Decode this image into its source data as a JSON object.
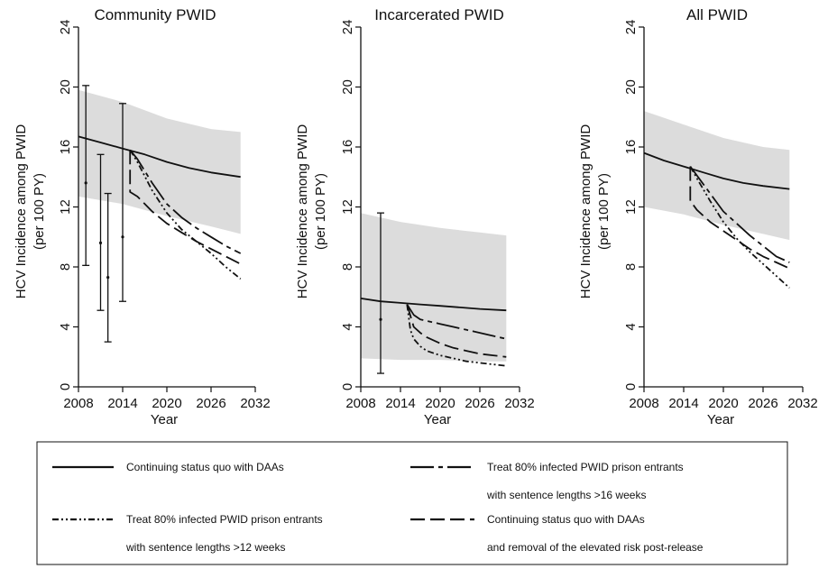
{
  "chart_data": [
    {
      "type": "line",
      "title": "Community PWID",
      "xlabel": "Year",
      "ylabel_line1": "HCV Incidence among PWID",
      "ylabel_line2": "(per 100 PY)",
      "xlim": [
        2008,
        2032
      ],
      "ylim": [
        0,
        24
      ],
      "xticks": [
        "2008",
        "2014",
        "2020",
        "2026",
        "2032"
      ],
      "yticks": [
        "0",
        "4",
        "8",
        "12",
        "16",
        "20",
        "24"
      ],
      "band": {
        "x": [
          2008,
          2014,
          2020,
          2026,
          2030
        ],
        "upper": [
          19.8,
          19.0,
          17.9,
          17.2,
          17.0
        ],
        "lower": [
          12.7,
          12.2,
          11.4,
          10.7,
          10.2
        ]
      },
      "series": [
        {
          "key": "status_quo",
          "x": [
            2008,
            2011,
            2014,
            2017,
            2020,
            2023,
            2026,
            2030
          ],
          "values": [
            16.7,
            16.3,
            15.9,
            15.5,
            15.0,
            14.6,
            14.3,
            14.0
          ]
        },
        {
          "key": "treat16",
          "x": [
            2015,
            2016,
            2018,
            2020,
            2022,
            2024,
            2026,
            2028,
            2030
          ],
          "values": [
            15.8,
            15.2,
            13.6,
            12.2,
            11.3,
            10.6,
            10.0,
            9.4,
            8.9
          ]
        },
        {
          "key": "treat12",
          "x": [
            2015,
            2016,
            2018,
            2020,
            2022,
            2024,
            2026,
            2028,
            2030
          ],
          "values": [
            15.8,
            15.0,
            13.1,
            11.6,
            10.5,
            9.7,
            8.9,
            8.0,
            7.2
          ]
        },
        {
          "key": "removal",
          "x": [
            2015,
            2015,
            2016,
            2018,
            2020,
            2022,
            2024,
            2026,
            2028,
            2030
          ],
          "values": [
            15.8,
            13.0,
            12.7,
            11.7,
            10.9,
            10.3,
            9.7,
            9.2,
            8.7,
            8.2
          ]
        }
      ],
      "errorbars": [
        {
          "x": 2009,
          "y": 13.6,
          "low": 8.1,
          "high": 20.1
        },
        {
          "x": 2011,
          "y": 9.6,
          "low": 5.1,
          "high": 15.5
        },
        {
          "x": 2012,
          "y": 7.3,
          "low": 3.0,
          "high": 12.9
        },
        {
          "x": 2014,
          "y": 10.0,
          "low": 5.7,
          "high": 18.9
        }
      ]
    },
    {
      "type": "line",
      "title": "Incarcerated PWID",
      "xlabel": "Year",
      "ylabel_line1": "HCV Incidence among PWID",
      "ylabel_line2": "(per 100 PY)",
      "xlim": [
        2008,
        2032
      ],
      "ylim": [
        0,
        24
      ],
      "xticks": [
        "2008",
        "2014",
        "2020",
        "2026",
        "2032"
      ],
      "yticks": [
        "0",
        "4",
        "8",
        "12",
        "16",
        "20",
        "24"
      ],
      "band": {
        "x": [
          2008,
          2014,
          2020,
          2026,
          2030
        ],
        "upper": [
          11.6,
          11.0,
          10.6,
          10.3,
          10.1
        ],
        "lower": [
          1.9,
          1.8,
          1.8,
          1.7,
          1.7
        ]
      },
      "series": [
        {
          "key": "status_quo",
          "x": [
            2008,
            2011,
            2014,
            2017,
            2020,
            2023,
            2026,
            2030
          ],
          "values": [
            5.9,
            5.7,
            5.6,
            5.5,
            5.4,
            5.3,
            5.2,
            5.1
          ]
        },
        {
          "key": "treat16",
          "x": [
            2015,
            2016,
            2017,
            2018,
            2020,
            2022,
            2024,
            2026,
            2028,
            2030
          ],
          "values": [
            5.5,
            4.8,
            4.5,
            4.4,
            4.2,
            4.0,
            3.8,
            3.6,
            3.4,
            3.2
          ]
        },
        {
          "key": "treat12",
          "x": [
            2015,
            2015.5,
            2016,
            2017,
            2018,
            2020,
            2022,
            2024,
            2026,
            2028,
            2030
          ],
          "values": [
            5.5,
            3.8,
            3.2,
            2.7,
            2.4,
            2.1,
            1.9,
            1.7,
            1.6,
            1.5,
            1.4
          ]
        },
        {
          "key": "removal",
          "x": [
            2015,
            2016,
            2017,
            2018,
            2020,
            2022,
            2024,
            2026,
            2028,
            2030
          ],
          "values": [
            5.5,
            4.0,
            3.6,
            3.3,
            2.9,
            2.6,
            2.4,
            2.2,
            2.1,
            2.0
          ]
        }
      ],
      "errorbars": [
        {
          "x": 2011,
          "y": 4.5,
          "low": 0.9,
          "high": 11.6
        }
      ]
    },
    {
      "type": "line",
      "title": "All PWID",
      "xlabel": "Year",
      "ylabel_line1": "HCV Incidence among PWID",
      "ylabel_line2": "(per 100 PY)",
      "xlim": [
        2008,
        2032
      ],
      "ylim": [
        0,
        24
      ],
      "xticks": [
        "2008",
        "2014",
        "2020",
        "2026",
        "2032"
      ],
      "yticks": [
        "0",
        "4",
        "8",
        "12",
        "16",
        "20",
        "24"
      ],
      "band": {
        "x": [
          2008,
          2014,
          2020,
          2026,
          2030
        ],
        "upper": [
          18.4,
          17.5,
          16.6,
          16.0,
          15.8
        ],
        "lower": [
          12.0,
          11.5,
          10.8,
          10.2,
          9.8
        ]
      },
      "series": [
        {
          "key": "status_quo",
          "x": [
            2008,
            2011,
            2014,
            2017,
            2020,
            2023,
            2026,
            2030
          ],
          "values": [
            15.6,
            15.1,
            14.7,
            14.3,
            13.9,
            13.6,
            13.4,
            13.2
          ]
        },
        {
          "key": "treat16",
          "x": [
            2015,
            2016,
            2018,
            2020,
            2022,
            2024,
            2026,
            2028,
            2030
          ],
          "values": [
            14.7,
            14.1,
            12.9,
            11.7,
            10.9,
            10.1,
            9.4,
            8.7,
            8.3
          ]
        },
        {
          "key": "treat12",
          "x": [
            2015,
            2016,
            2018,
            2020,
            2022,
            2024,
            2026,
            2028,
            2030
          ],
          "values": [
            14.7,
            13.9,
            12.4,
            11.0,
            9.9,
            9.0,
            8.2,
            7.4,
            6.6
          ]
        },
        {
          "key": "removal",
          "x": [
            2015,
            2015,
            2016,
            2018,
            2020,
            2022,
            2024,
            2026,
            2028,
            2030
          ],
          "values": [
            14.7,
            12.4,
            11.8,
            11.0,
            10.4,
            9.8,
            9.2,
            8.7,
            8.3,
            7.9
          ]
        }
      ],
      "errorbars": []
    }
  ],
  "legend": {
    "items": [
      {
        "key": "status_quo",
        "line1": "Continuing status quo with DAAs",
        "line2": ""
      },
      {
        "key": "treat16",
        "line1": "Treat 80% infected PWID prison entrants",
        "line2": "with sentence lengths >16 weeks"
      },
      {
        "key": "treat12",
        "line1": "Treat 80% infected PWID prison entrants",
        "line2": "with sentence lengths >12 weeks"
      },
      {
        "key": "removal",
        "line1": "Continuing status quo with DAAs",
        "line2": "and removal of the elevated risk post-release"
      }
    ],
    "styles": {
      "status_quo": "",
      "treat16": "26,5,5,5",
      "treat12": "7,3,2,3,2,3",
      "removal": "16,6"
    }
  },
  "colors": {
    "band": "#dcdcdc",
    "band_edge": "#c8c8c8",
    "line": "#111111"
  }
}
